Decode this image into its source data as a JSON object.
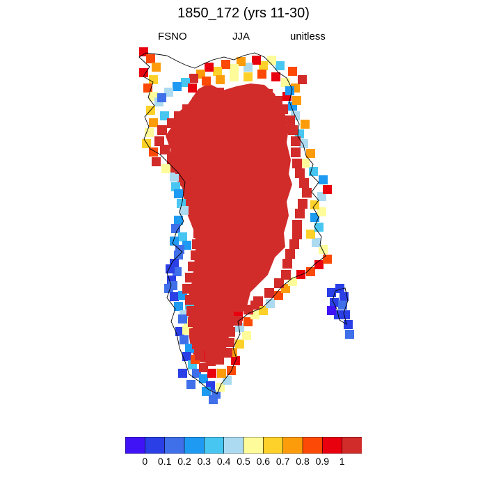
{
  "header": {
    "title": "1850_172 (yrs 11-30)",
    "left": "FSNO",
    "center": "JJA",
    "right": "unitless"
  },
  "legend": {
    "colors": [
      "#3f13f5",
      "#2a3fe6",
      "#3f6fe9",
      "#1e9af2",
      "#48c6f2",
      "#acdbf1",
      "#fefc9a",
      "#fdd12a",
      "#fd9c0b",
      "#fc4a06",
      "#e9000f",
      "#d12b2a"
    ],
    "labels": [
      "0",
      "0.1",
      "0.2",
      "0.3",
      "0.4",
      "0.5",
      "0.6",
      "0.7",
      "0.8",
      "0.9",
      "1"
    ]
  },
  "map": {
    "region": "Greenland",
    "interior_value": 1.0,
    "interior_color": "#d12b2a",
    "coastal_edge_colors": [
      "#e9000f",
      "#fc4a06",
      "#fd9c0b",
      "#fdd12a",
      "#fefc9a",
      "#acdbf1",
      "#48c6f2",
      "#1e9af2",
      "#3f6fe9",
      "#2a3fe6"
    ],
    "coastline": true
  }
}
